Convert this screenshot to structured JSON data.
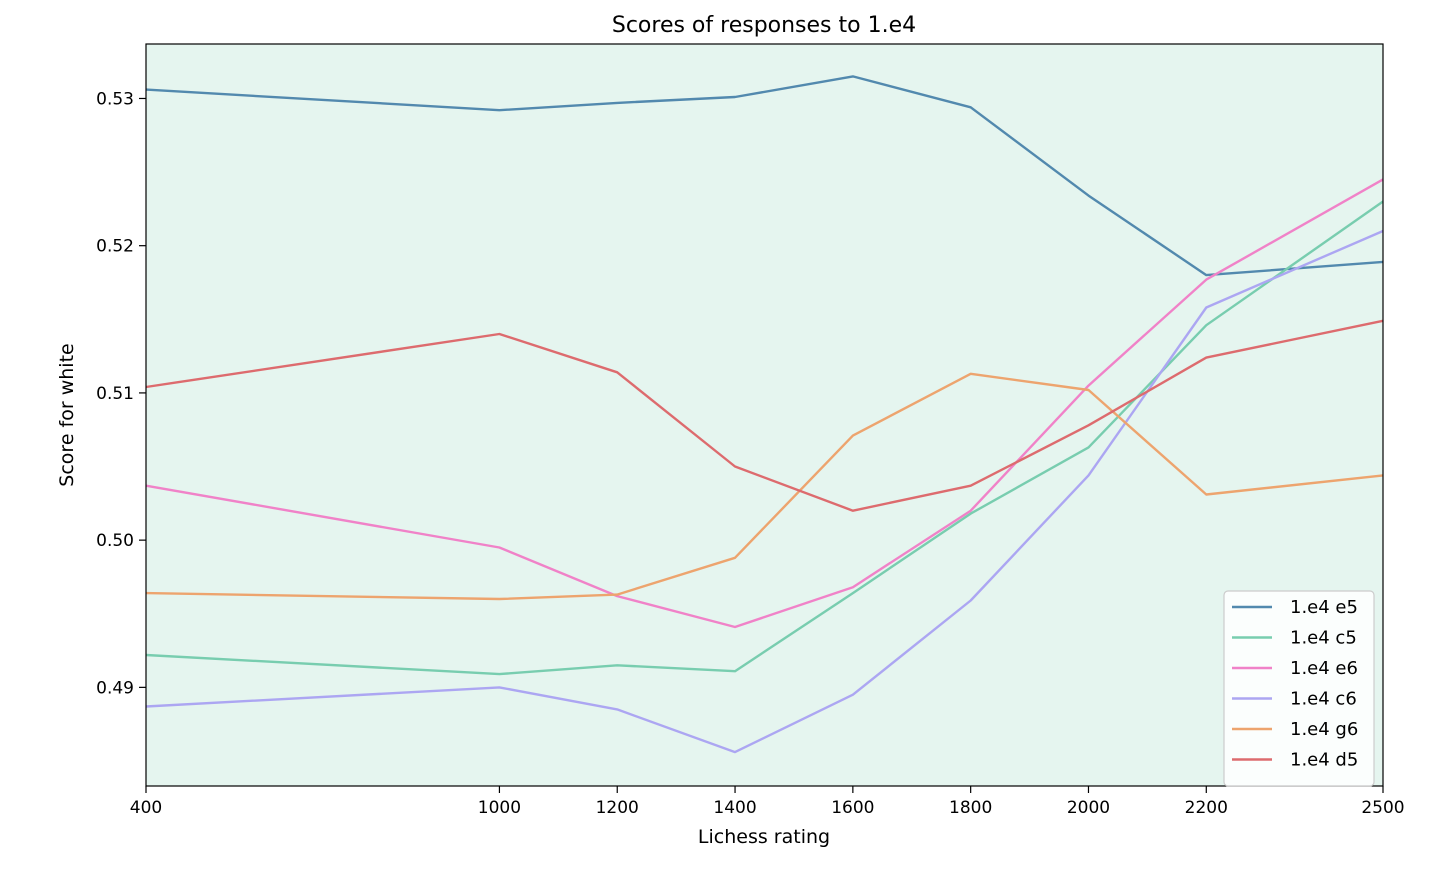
{
  "chart_data": {
    "type": "line",
    "title": "Scores of responses to 1.e4",
    "xlabel": "Lichess rating",
    "ylabel": "Score for white",
    "x": [
      "400",
      "1000",
      "1200",
      "1400",
      "1600",
      "1800",
      "2000",
      "2200",
      "2500"
    ],
    "ylim": [
      0.4833,
      0.5337
    ],
    "yticks": [
      0.49,
      0.5,
      0.51,
      0.52,
      0.53
    ],
    "ytick_labels": [
      "0.49",
      "0.50",
      "0.51",
      "0.52",
      "0.53"
    ],
    "grid": false,
    "background_color": "#e5f5ef",
    "legend_position": "lower-right",
    "series": [
      {
        "name": "1.e4 e5",
        "color": "#5289ae",
        "values": [
          0.5306,
          0.5292,
          0.5297,
          0.5301,
          0.5315,
          0.5294,
          0.5234,
          0.518,
          0.5189
        ]
      },
      {
        "name": "1.e4 c5",
        "color": "#78cdaf",
        "values": [
          0.4922,
          0.4909,
          0.4915,
          0.4911,
          0.4964,
          0.5018,
          0.5063,
          0.5146,
          0.523
        ]
      },
      {
        "name": "1.e4 e6",
        "color": "#f082c8",
        "values": [
          0.5037,
          0.4995,
          0.4962,
          0.4941,
          0.4968,
          0.502,
          0.5105,
          0.5177,
          0.5245
        ]
      },
      {
        "name": "1.e4 c6",
        "color": "#aca6f2",
        "values": [
          0.4887,
          0.49,
          0.4885,
          0.4856,
          0.4895,
          0.4959,
          0.5044,
          0.5158,
          0.521
        ]
      },
      {
        "name": "1.e4 g6",
        "color": "#eda46e",
        "values": [
          0.4964,
          0.496,
          0.4963,
          0.4988,
          0.5071,
          0.5113,
          0.5102,
          0.5031,
          0.5044
        ]
      },
      {
        "name": "1.e4 d5",
        "color": "#dd6b6e",
        "values": [
          0.5104,
          0.514,
          0.5114,
          0.505,
          0.502,
          0.5037,
          0.5078,
          0.5124,
          0.5149
        ]
      }
    ]
  }
}
